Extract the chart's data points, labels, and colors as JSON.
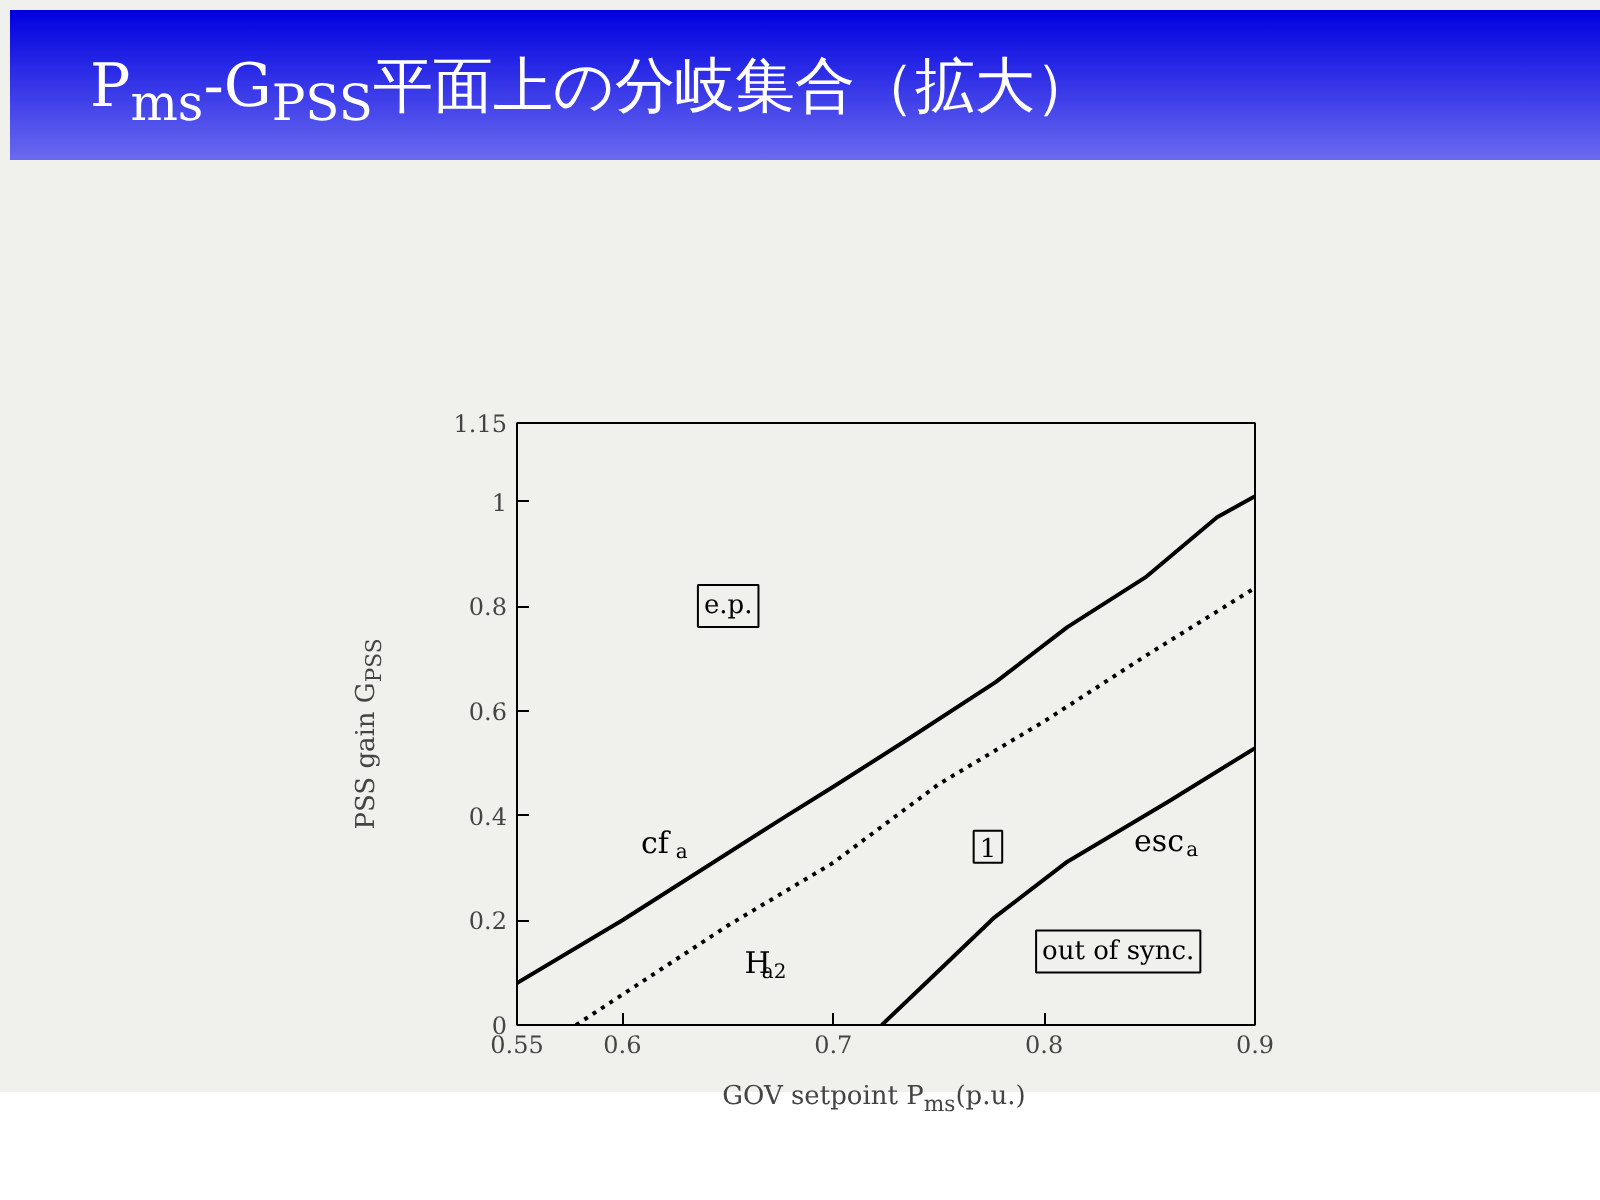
{
  "chart_data": {
    "type": "line",
    "title": "P$_{ms}$-G$_{PSS}$平面上の分岐集合（拡大）",
    "xlabel": "GOV setpoint  P$_{ms}$(p.u.)",
    "ylabel": "PSS gain  G$_{PSS}$",
    "xlim": [
      0.55,
      0.9
    ],
    "ylim": [
      0,
      1.15
    ],
    "xticks": [
      0.55,
      0.6,
      0.7,
      0.8,
      0.9
    ],
    "yticks": [
      0,
      0.2,
      0.4,
      0.6,
      0.8,
      1,
      1.15
    ],
    "grid": false,
    "marker": "none",
    "series": [
      {
        "name": "cf$_{a}$",
        "color": "#000000",
        "line_style": "solid",
        "x": [
          0.55,
          0.6,
          0.678,
          0.7,
          0.735,
          0.777,
          0.811,
          0.848,
          0.882,
          0.9
        ],
        "values": [
          0.08,
          0.2,
          0.4,
          0.455,
          0.545,
          0.655,
          0.76,
          0.855,
          0.97,
          1.01
        ]
      },
      {
        "name": "H$_{a2}$",
        "color": "#000000",
        "line_style": "dotted",
        "x": [
          0.578,
          0.65,
          0.7,
          0.75,
          0.8,
          0.85,
          0.9
        ],
        "values": [
          0,
          0.19,
          0.31,
          0.46,
          0.58,
          0.71,
          0.835
        ]
      },
      {
        "name": "esc$_{a}$",
        "color": "#000000",
        "line_style": "solid",
        "x": [
          0.723,
          0.748,
          0.776,
          0.811,
          0.859,
          0.9
        ],
        "values": [
          0,
          0.096,
          0.204,
          0.312,
          0.427,
          0.529
        ]
      }
    ],
    "annotations": [
      "e.p.",
      "1",
      "out of sync."
    ]
  }
}
